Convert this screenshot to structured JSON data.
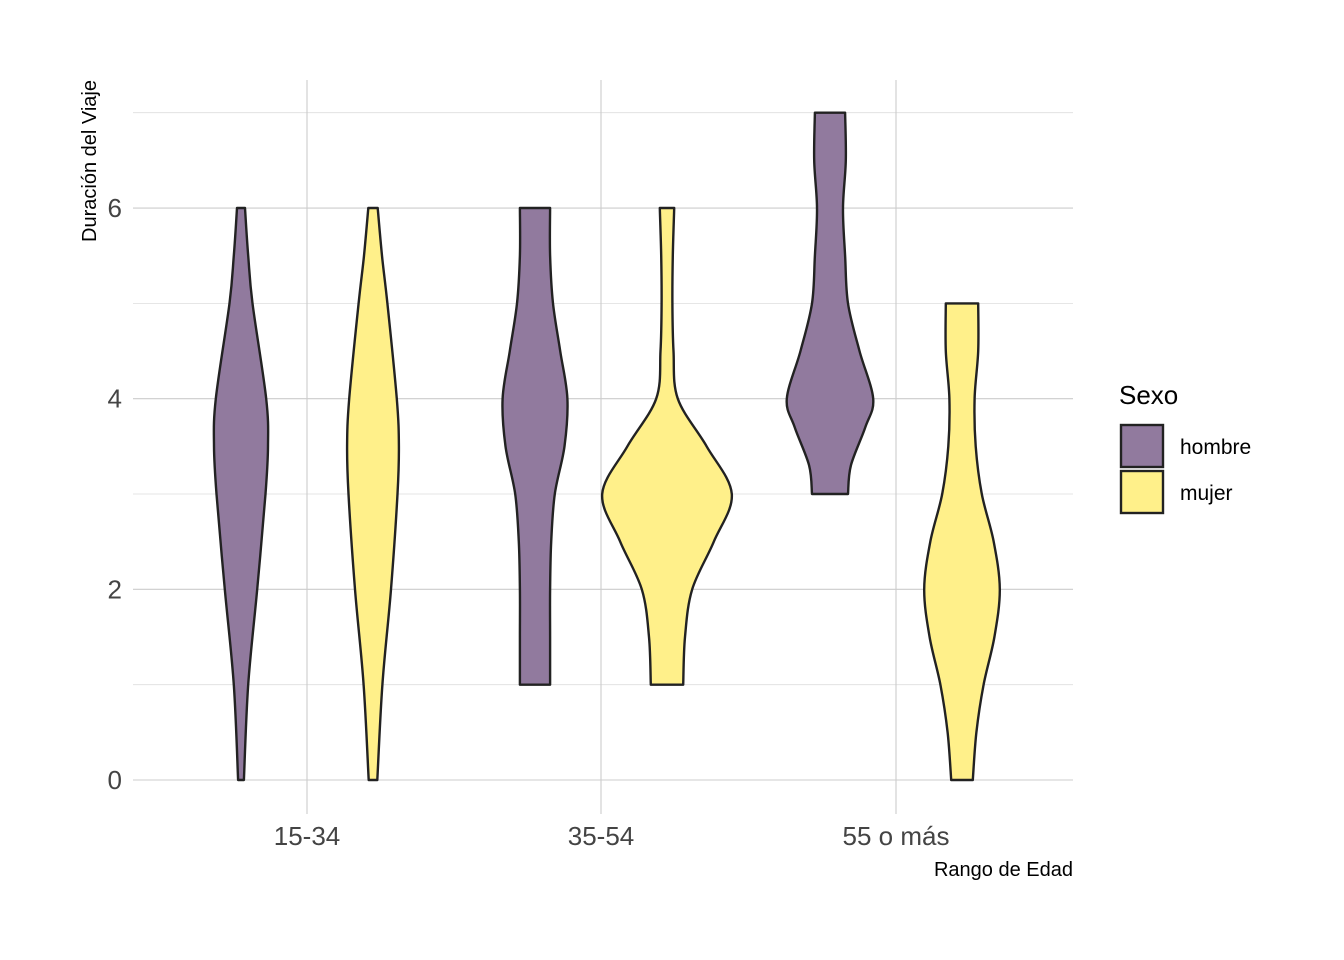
{
  "chart_data": {
    "type": "violin",
    "title": "",
    "xlabel": "Rango de Edad",
    "ylabel": "Duración del Viaje",
    "categories": [
      "15-34",
      "35-54",
      "55 o más"
    ],
    "yticks": [
      0,
      2,
      4,
      6
    ],
    "ylim": [
      -0.35,
      7.35
    ],
    "grid": true,
    "legend": {
      "title": "Sexo",
      "position": "right",
      "items": [
        {
          "label": "hombre",
          "color": "#917A9E"
        },
        {
          "label": "mujer",
          "color": "#FFF08A"
        }
      ]
    },
    "series": [
      {
        "name": "hombre",
        "color": "#917A9E",
        "violins": [
          {
            "category": "15-34",
            "profile": [
              [
                0,
                0.08
              ],
              [
                1,
                0.2
              ],
              [
                2,
                0.45
              ],
              [
                3,
                0.68
              ],
              [
                3.5,
                0.75
              ],
              [
                4,
                0.7
              ],
              [
                5,
                0.32
              ],
              [
                5.5,
                0.2
              ],
              [
                6,
                0.11
              ]
            ]
          },
          {
            "category": "35-54",
            "profile": [
              [
                1,
                0.42
              ],
              [
                1.5,
                0.42
              ],
              [
                2,
                0.42
              ],
              [
                2.5,
                0.45
              ],
              [
                3,
                0.55
              ],
              [
                3.5,
                0.82
              ],
              [
                4,
                0.9
              ],
              [
                4.5,
                0.7
              ],
              [
                5,
                0.5
              ],
              [
                5.5,
                0.42
              ],
              [
                6,
                0.42
              ]
            ]
          },
          {
            "category": "55 o más",
            "profile": [
              [
                3,
                0.5
              ],
              [
                3.3,
                0.58
              ],
              [
                3.7,
                0.98
              ],
              [
                4,
                1.2
              ],
              [
                4.5,
                0.82
              ],
              [
                5,
                0.5
              ],
              [
                5.5,
                0.42
              ],
              [
                6,
                0.36
              ],
              [
                6.5,
                0.44
              ],
              [
                7,
                0.42
              ]
            ]
          }
        ]
      },
      {
        "name": "mujer",
        "color": "#FFF08A",
        "violins": [
          {
            "category": "15-34",
            "profile": [
              [
                0,
                0.12
              ],
              [
                1,
                0.26
              ],
              [
                2,
                0.5
              ],
              [
                3,
                0.68
              ],
              [
                3.5,
                0.72
              ],
              [
                4,
                0.66
              ],
              [
                5,
                0.4
              ],
              [
                5.5,
                0.25
              ],
              [
                6,
                0.13
              ]
            ]
          },
          {
            "category": "35-54",
            "profile": [
              [
                1,
                0.45
              ],
              [
                1.5,
                0.5
              ],
              [
                2,
                0.7
              ],
              [
                2.5,
                1.3
              ],
              [
                3,
                1.8
              ],
              [
                3.5,
                1.1
              ],
              [
                4,
                0.3
              ],
              [
                4.5,
                0.18
              ],
              [
                5,
                0.15
              ],
              [
                5.5,
                0.16
              ],
              [
                6,
                0.2
              ]
            ]
          },
          {
            "category": "55 o más",
            "profile": [
              [
                0,
                0.3
              ],
              [
                0.5,
                0.4
              ],
              [
                1,
                0.6
              ],
              [
                1.5,
                0.9
              ],
              [
                2,
                1.05
              ],
              [
                2.5,
                0.88
              ],
              [
                3,
                0.55
              ],
              [
                3.5,
                0.38
              ],
              [
                4,
                0.35
              ],
              [
                4.5,
                0.45
              ],
              [
                5,
                0.45
              ]
            ]
          }
        ]
      }
    ]
  }
}
